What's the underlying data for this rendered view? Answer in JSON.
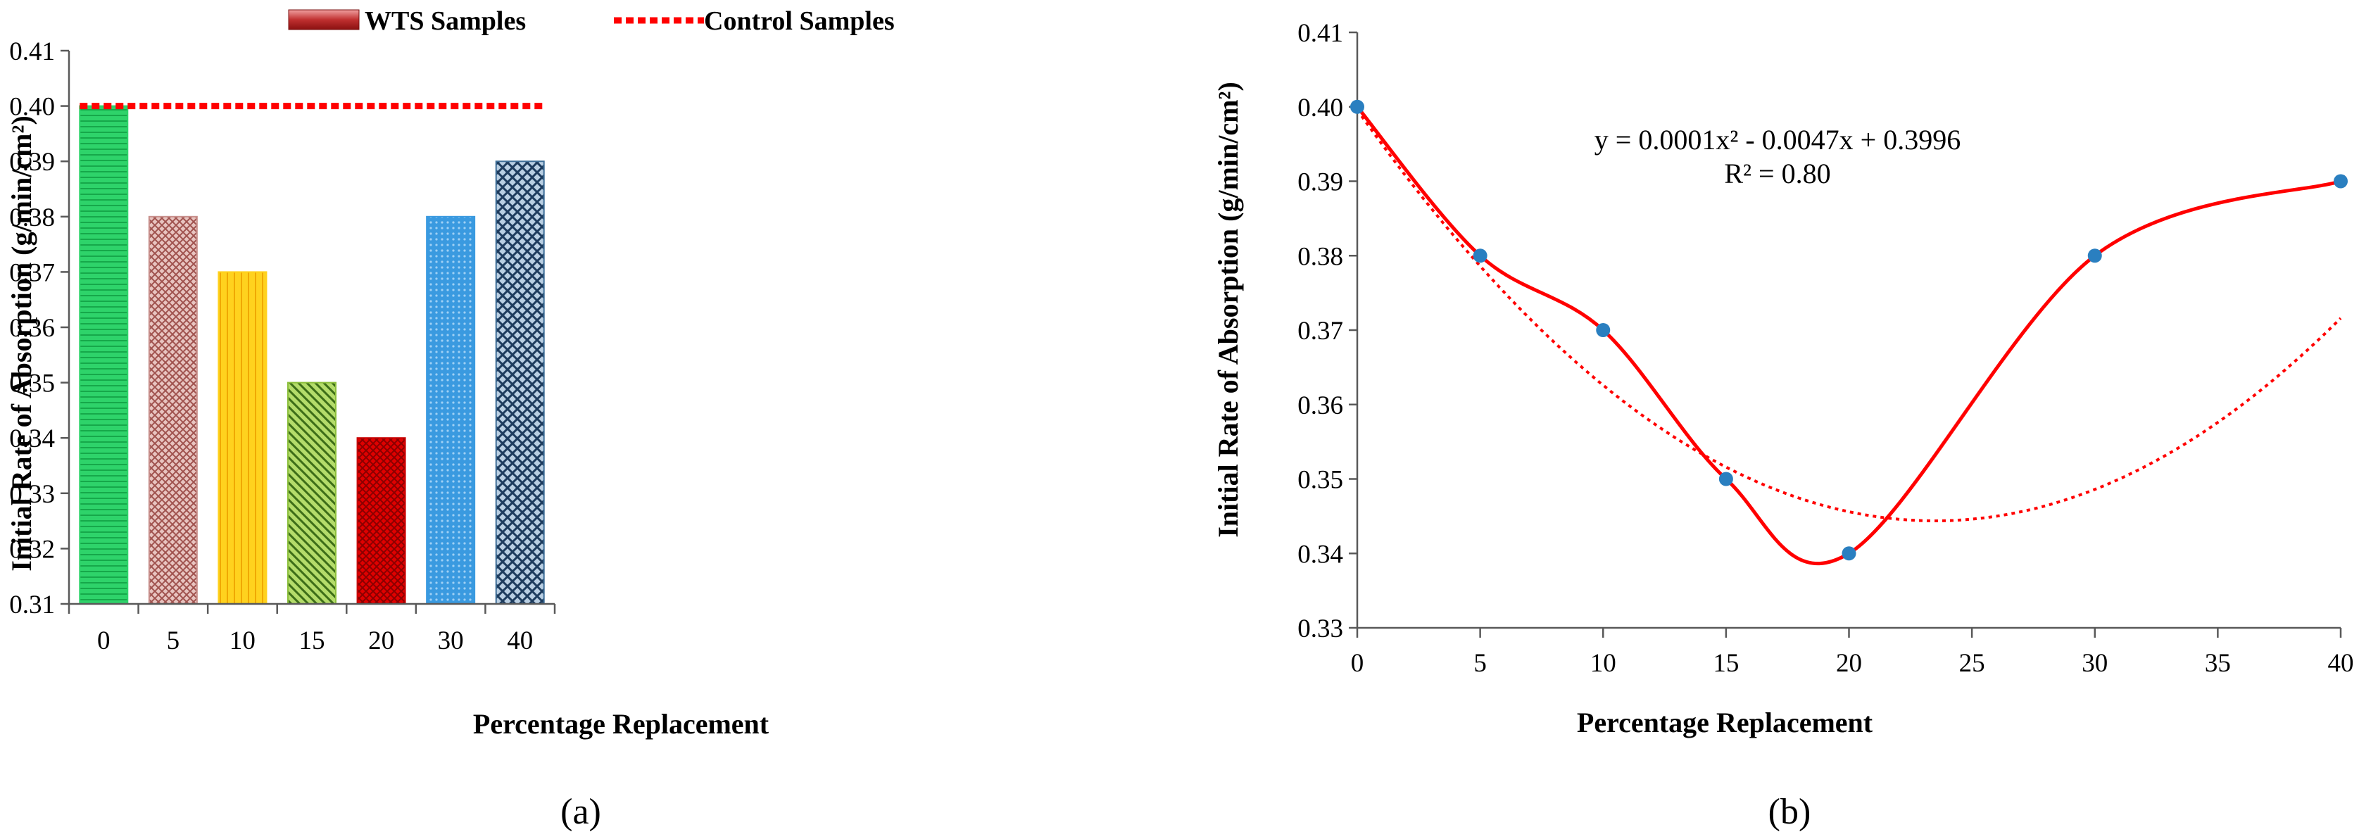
{
  "chart_data": [
    {
      "type": "bar",
      "panel_label": "(a)",
      "categories": [
        "0",
        "5",
        "10",
        "15",
        "20",
        "30",
        "40"
      ],
      "series": [
        {
          "name": "WTS Samples",
          "values": [
            0.4,
            0.38,
            0.37,
            0.35,
            0.34,
            0.38,
            0.39
          ]
        },
        {
          "name": "Control Samples",
          "type": "line",
          "values": [
            0.4,
            0.4,
            0.4,
            0.4,
            0.4,
            0.4,
            0.4
          ]
        }
      ],
      "bar_colors": [
        "#2ed36a",
        "#c8908c",
        "#ffd21e",
        "#8cbf3c",
        "#c80000",
        "#3a9ae0",
        "#3f6f98"
      ],
      "control_color": "#ff0000",
      "legend": {
        "wts_label": "WTS Samples",
        "control_label": "Control Samples",
        "placement": "top"
      },
      "xlabel": "Percentage Replacement",
      "ylabel": "Initial Rate of Absorption (g/min/cm²)",
      "ylim": [
        0.31,
        0.41
      ],
      "yticks": [
        "0.31",
        "0.32",
        "0.33",
        "0.34",
        "0.35",
        "0.36",
        "0.37",
        "0.38",
        "0.39",
        "0.40",
        "0.41"
      ],
      "grid": false
    },
    {
      "type": "scatter",
      "panel_label": "(b)",
      "x": [
        0,
        5,
        10,
        15,
        20,
        30,
        40
      ],
      "y": [
        0.4,
        0.38,
        0.37,
        0.35,
        0.34,
        0.38,
        0.39
      ],
      "point_color": "#2a7fc0",
      "smooth_line_color": "#ff0000",
      "trendline": {
        "kind": "polynomial-2",
        "coefficients": {
          "a": 0.0001,
          "b": -0.0047,
          "c": 0.3996
        },
        "equation": "y = 0.0001x² - 0.0047x + 0.3996",
        "r2": "R² = 0.80",
        "style": "dotted",
        "color": "#ff0000"
      },
      "xlabel": "Percentage  Replacement",
      "ylabel": "Initial Rate of Absorption (g/min/cm²)",
      "xlim": [
        0,
        40
      ],
      "xticks": [
        "0",
        "5",
        "10",
        "15",
        "20",
        "25",
        "30",
        "35",
        "40"
      ],
      "ylim": [
        0.33,
        0.41
      ],
      "yticks": [
        "0.33",
        "0.34",
        "0.35",
        "0.36",
        "0.37",
        "0.38",
        "0.39",
        "0.40",
        "0.41"
      ],
      "grid": false
    }
  ]
}
